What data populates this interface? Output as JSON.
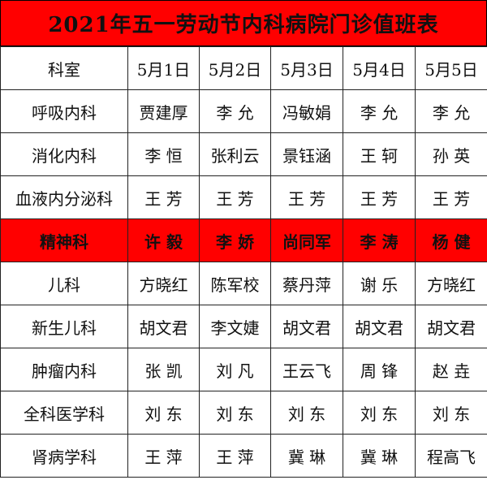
{
  "title": "2021年五一劳动节内科病院门诊值班表",
  "highlight_color": "#ff0000",
  "header": [
    "科室",
    "5月1日",
    "5月2日",
    "5月3日",
    "5月4日",
    "5月5日"
  ],
  "rows": [
    {
      "dept": "呼吸内科",
      "duty": [
        "贾建厚",
        "李 允",
        "冯敏娟",
        "李 允",
        "李 允"
      ],
      "highlight": false
    },
    {
      "dept": "消化内科",
      "duty": [
        "李 恒",
        "张利云",
        "景钰涵",
        "王 轲",
        "孙 英"
      ],
      "highlight": false
    },
    {
      "dept": "血液内分泌科",
      "duty": [
        "王 芳",
        "王 芳",
        "王 芳",
        "王 芳",
        "王 芳"
      ],
      "highlight": false
    },
    {
      "dept": "精神科",
      "duty": [
        "许 毅",
        "李 娇",
        "尚同军",
        "李 涛",
        "杨 健"
      ],
      "highlight": true
    },
    {
      "dept": "儿科",
      "duty": [
        "方晓红",
        "陈军校",
        "蔡丹萍",
        "谢 乐",
        "方晓红"
      ],
      "highlight": false
    },
    {
      "dept": "新生儿科",
      "duty": [
        "胡文君",
        "李文婕",
        "胡文君",
        "胡文君",
        "胡文君"
      ],
      "highlight": false
    },
    {
      "dept": "肿瘤内科",
      "duty": [
        "张 凯",
        "刘 凡",
        "王云飞",
        "周 锋",
        "赵 垚"
      ],
      "highlight": false
    },
    {
      "dept": "全科医学科",
      "duty": [
        "刘 东",
        "刘 东",
        "刘 东",
        "刘 东",
        "刘 东"
      ],
      "highlight": false
    },
    {
      "dept": "肾病学科",
      "duty": [
        "王 萍",
        "王 萍",
        "冀 琳",
        "冀 琳",
        "程高飞"
      ],
      "highlight": false
    }
  ]
}
